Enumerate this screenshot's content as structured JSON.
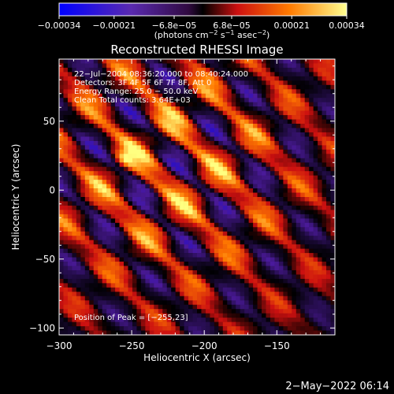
{
  "chart_data": {
    "type": "heatmap",
    "title": "Reconstructed RHESSI Image",
    "xlabel": "Heliocentric X (arcsec)",
    "ylabel": "Heliocentric Y (arcsec)",
    "xlim": [
      -300,
      -110
    ],
    "ylim": [
      -105,
      95
    ],
    "x_ticks": [
      "−300",
      "−250",
      "−200",
      "−150"
    ],
    "x_tick_values": [
      -300,
      -250,
      -200,
      -150
    ],
    "y_ticks": [
      "50",
      "0",
      "−50",
      "−100"
    ],
    "y_tick_values": [
      50,
      0,
      -50,
      -100
    ],
    "colorbar": {
      "range": [
        -0.00034,
        0.00034
      ],
      "tick_labels": [
        "−0.00034",
        "−0.00021",
        "−6.8e−05",
        "6.8e−05",
        "0.00021",
        "0.00034"
      ],
      "tick_values": [
        -0.00034,
        -0.00021,
        -6.8e-05,
        6.8e-05,
        0.00021,
        0.00034
      ],
      "unit_main": "(photons cm",
      "unit_exp1": "−2",
      "unit_mid": " s",
      "unit_exp2": "−1",
      "unit_end1": " asec",
      "unit_exp3": "−2",
      "unit_close": ")"
    },
    "annotations": [
      "22−Jul−2004 08:36:20.000 to 08:40:24.000",
      "Detectors: 3F 4F 5F 6F 7F 8F, Att 0",
      "Energy Range: 25.0 − 50.0 keV",
      "Clean    Total counts: 3.64E+03"
    ],
    "peak_label": "Position of Peak = [−255,23]",
    "peak_position": [
      -255,
      23
    ],
    "colormap": [
      "#0000ff",
      "#4b1a9a",
      "#000000",
      "#cc1010",
      "#ff7a00",
      "#ffff80"
    ],
    "grid": false
  },
  "footer": {
    "timestamp": "2−May−2022 06:14"
  }
}
